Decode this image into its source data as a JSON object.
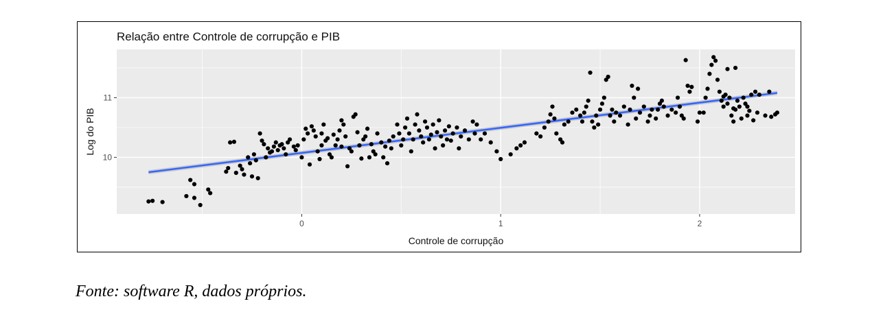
{
  "caption": "Fonte: software R, dados próprios.",
  "chart_data": {
    "type": "scatter",
    "title": "Relação entre Controle de corrupção e PIB",
    "xlabel": "Controle de corrupção",
    "ylabel": "Log do PIB",
    "xlim": [
      -0.93,
      2.48
    ],
    "ylim": [
      9.05,
      11.81
    ],
    "xticks": [
      0,
      1,
      2
    ],
    "xtick_labels": [
      "0",
      "1",
      "2"
    ],
    "yticks": [
      10,
      11
    ],
    "ytick_labels": [
      "10",
      "11"
    ],
    "grid": true,
    "legend": "none",
    "colors": {
      "panel": "#ebebeb",
      "grid": "#ffffff",
      "points": "#000000",
      "trend_line": "#3366ff",
      "confidence_band": "#bdbdbd"
    },
    "trend_line": {
      "method": "lm",
      "x": [
        -0.77,
        2.39
      ],
      "y": [
        9.75,
        11.08
      ],
      "band": 0.035
    },
    "points": [
      [
        -0.77,
        9.26
      ],
      [
        -0.75,
        9.27
      ],
      [
        -0.7,
        9.25
      ],
      [
        -0.58,
        9.35
      ],
      [
        -0.56,
        9.62
      ],
      [
        -0.54,
        9.55
      ],
      [
        -0.54,
        9.32
      ],
      [
        -0.51,
        9.2
      ],
      [
        -0.47,
        9.46
      ],
      [
        -0.46,
        9.4
      ],
      [
        -0.38,
        9.76
      ],
      [
        -0.37,
        9.82
      ],
      [
        -0.36,
        10.25
      ],
      [
        -0.34,
        10.26
      ],
      [
        -0.33,
        9.74
      ],
      [
        -0.31,
        9.86
      ],
      [
        -0.3,
        9.8
      ],
      [
        -0.29,
        9.71
      ],
      [
        -0.27,
        10.0
      ],
      [
        -0.26,
        9.9
      ],
      [
        -0.25,
        9.68
      ],
      [
        -0.24,
        10.05
      ],
      [
        -0.23,
        9.95
      ],
      [
        -0.22,
        9.65
      ],
      [
        -0.21,
        10.4
      ],
      [
        -0.2,
        10.28
      ],
      [
        -0.19,
        10.22
      ],
      [
        -0.18,
        10.0
      ],
      [
        -0.17,
        10.15
      ],
      [
        -0.16,
        10.08
      ],
      [
        -0.15,
        10.1
      ],
      [
        -0.14,
        10.18
      ],
      [
        -0.13,
        10.25
      ],
      [
        -0.12,
        10.12
      ],
      [
        -0.11,
        10.2
      ],
      [
        -0.1,
        10.22
      ],
      [
        -0.09,
        10.15
      ],
      [
        -0.08,
        10.05
      ],
      [
        -0.07,
        10.25
      ],
      [
        -0.06,
        10.3
      ],
      [
        -0.04,
        10.18
      ],
      [
        -0.03,
        10.12
      ],
      [
        -0.02,
        10.2
      ],
      [
        0.0,
        10.0
      ],
      [
        0.01,
        10.3
      ],
      [
        0.02,
        10.48
      ],
      [
        0.03,
        10.4
      ],
      [
        0.04,
        9.88
      ],
      [
        0.05,
        10.52
      ],
      [
        0.06,
        10.45
      ],
      [
        0.07,
        10.35
      ],
      [
        0.08,
        10.1
      ],
      [
        0.09,
        9.97
      ],
      [
        0.1,
        10.2
      ],
      [
        0.1,
        10.4
      ],
      [
        0.11,
        10.55
      ],
      [
        0.12,
        10.28
      ],
      [
        0.13,
        10.32
      ],
      [
        0.14,
        10.05
      ],
      [
        0.15,
        10.0
      ],
      [
        0.16,
        10.38
      ],
      [
        0.17,
        10.2
      ],
      [
        0.18,
        10.3
      ],
      [
        0.19,
        10.45
      ],
      [
        0.2,
        10.18
      ],
      [
        0.2,
        10.62
      ],
      [
        0.21,
        10.55
      ],
      [
        0.22,
        10.35
      ],
      [
        0.23,
        9.85
      ],
      [
        0.24,
        10.15
      ],
      [
        0.25,
        10.1
      ],
      [
        0.26,
        10.68
      ],
      [
        0.27,
        10.72
      ],
      [
        0.28,
        10.42
      ],
      [
        0.29,
        10.2
      ],
      [
        0.3,
        9.98
      ],
      [
        0.31,
        10.3
      ],
      [
        0.32,
        10.35
      ],
      [
        0.33,
        10.48
      ],
      [
        0.34,
        10.0
      ],
      [
        0.35,
        10.22
      ],
      [
        0.36,
        10.1
      ],
      [
        0.37,
        10.05
      ],
      [
        0.38,
        10.4
      ],
      [
        0.4,
        10.25
      ],
      [
        0.41,
        10.0
      ],
      [
        0.42,
        10.18
      ],
      [
        0.43,
        9.9
      ],
      [
        0.44,
        10.28
      ],
      [
        0.45,
        10.15
      ],
      [
        0.46,
        10.35
      ],
      [
        0.48,
        10.55
      ],
      [
        0.49,
        10.4
      ],
      [
        0.5,
        10.2
      ],
      [
        0.51,
        10.3
      ],
      [
        0.52,
        10.5
      ],
      [
        0.53,
        10.65
      ],
      [
        0.54,
        10.4
      ],
      [
        0.55,
        10.1
      ],
      [
        0.56,
        10.3
      ],
      [
        0.57,
        10.55
      ],
      [
        0.58,
        10.72
      ],
      [
        0.59,
        10.45
      ],
      [
        0.6,
        10.35
      ],
      [
        0.61,
        10.25
      ],
      [
        0.62,
        10.6
      ],
      [
        0.63,
        10.5
      ],
      [
        0.64,
        10.3
      ],
      [
        0.65,
        10.38
      ],
      [
        0.66,
        10.55
      ],
      [
        0.67,
        10.15
      ],
      [
        0.68,
        10.42
      ],
      [
        0.69,
        10.62
      ],
      [
        0.7,
        10.35
      ],
      [
        0.71,
        10.2
      ],
      [
        0.72,
        10.45
      ],
      [
        0.73,
        10.3
      ],
      [
        0.74,
        10.52
      ],
      [
        0.75,
        10.28
      ],
      [
        0.76,
        10.4
      ],
      [
        0.78,
        10.5
      ],
      [
        0.79,
        10.15
      ],
      [
        0.8,
        10.35
      ],
      [
        0.82,
        10.45
      ],
      [
        0.84,
        10.3
      ],
      [
        0.86,
        10.6
      ],
      [
        0.87,
        10.4
      ],
      [
        0.88,
        10.55
      ],
      [
        0.9,
        10.3
      ],
      [
        0.92,
        10.4
      ],
      [
        0.95,
        10.25
      ],
      [
        0.98,
        10.1
      ],
      [
        1.0,
        9.97
      ],
      [
        1.05,
        10.05
      ],
      [
        1.08,
        10.15
      ],
      [
        1.1,
        10.2
      ],
      [
        1.12,
        10.25
      ],
      [
        1.18,
        10.4
      ],
      [
        1.2,
        10.35
      ],
      [
        1.22,
        10.5
      ],
      [
        1.24,
        10.6
      ],
      [
        1.25,
        10.72
      ],
      [
        1.26,
        10.85
      ],
      [
        1.27,
        10.65
      ],
      [
        1.28,
        10.4
      ],
      [
        1.3,
        10.3
      ],
      [
        1.31,
        10.25
      ],
      [
        1.32,
        10.55
      ],
      [
        1.34,
        10.6
      ],
      [
        1.36,
        10.75
      ],
      [
        1.38,
        10.8
      ],
      [
        1.4,
        10.7
      ],
      [
        1.41,
        10.6
      ],
      [
        1.42,
        10.75
      ],
      [
        1.43,
        10.85
      ],
      [
        1.44,
        10.95
      ],
      [
        1.45,
        11.42
      ],
      [
        1.46,
        10.6
      ],
      [
        1.47,
        10.5
      ],
      [
        1.48,
        10.7
      ],
      [
        1.49,
        10.55
      ],
      [
        1.5,
        10.8
      ],
      [
        1.51,
        10.9
      ],
      [
        1.52,
        11.0
      ],
      [
        1.53,
        11.3
      ],
      [
        1.54,
        11.35
      ],
      [
        1.55,
        10.7
      ],
      [
        1.56,
        10.8
      ],
      [
        1.57,
        10.6
      ],
      [
        1.58,
        10.75
      ],
      [
        1.6,
        10.7
      ],
      [
        1.62,
        10.85
      ],
      [
        1.64,
        10.55
      ],
      [
        1.65,
        10.8
      ],
      [
        1.66,
        11.2
      ],
      [
        1.67,
        11.0
      ],
      [
        1.68,
        10.65
      ],
      [
        1.69,
        11.15
      ],
      [
        1.7,
        10.75
      ],
      [
        1.72,
        10.85
      ],
      [
        1.74,
        10.6
      ],
      [
        1.75,
        10.7
      ],
      [
        1.76,
        10.8
      ],
      [
        1.78,
        10.65
      ],
      [
        1.79,
        10.8
      ],
      [
        1.8,
        10.9
      ],
      [
        1.81,
        10.95
      ],
      [
        1.82,
        10.85
      ],
      [
        1.84,
        10.7
      ],
      [
        1.86,
        10.8
      ],
      [
        1.88,
        10.75
      ],
      [
        1.89,
        11.0
      ],
      [
        1.9,
        10.85
      ],
      [
        1.91,
        10.7
      ],
      [
        1.92,
        10.65
      ],
      [
        1.93,
        11.63
      ],
      [
        1.94,
        11.2
      ],
      [
        1.95,
        11.1
      ],
      [
        1.96,
        11.18
      ],
      [
        2.02,
        10.75
      ],
      [
        2.03,
        11.0
      ],
      [
        2.04,
        11.15
      ],
      [
        2.05,
        11.4
      ],
      [
        2.06,
        11.55
      ],
      [
        2.07,
        11.68
      ],
      [
        2.08,
        11.62
      ],
      [
        2.09,
        11.3
      ],
      [
        2.1,
        11.1
      ],
      [
        2.11,
        10.95
      ],
      [
        2.12,
        10.85
      ],
      [
        2.13,
        11.05
      ],
      [
        2.14,
        10.9
      ],
      [
        2.15,
        11.0
      ],
      [
        2.16,
        10.7
      ],
      [
        2.17,
        10.6
      ],
      [
        2.18,
        10.8
      ],
      [
        2.19,
        10.95
      ],
      [
        2.2,
        10.85
      ],
      [
        2.21,
        10.65
      ],
      [
        2.22,
        11.0
      ],
      [
        2.23,
        10.9
      ],
      [
        2.24,
        10.7
      ],
      [
        2.25,
        10.78
      ],
      [
        2.26,
        11.05
      ],
      [
        2.27,
        10.62
      ],
      [
        2.28,
        11.1
      ],
      [
        2.29,
        10.75
      ],
      [
        2.3,
        11.05
      ],
      [
        2.33,
        10.7
      ],
      [
        2.35,
        11.1
      ],
      [
        2.36,
        10.68
      ],
      [
        2.38,
        10.72
      ],
      [
        2.39,
        10.75
      ],
      [
        2.14,
        11.48
      ],
      [
        2.18,
        11.5
      ],
      [
        2.12,
        11.02
      ],
      [
        2.17,
        10.82
      ],
      [
        2.24,
        10.85
      ],
      [
        1.99,
        10.6
      ],
      [
        2.0,
        10.75
      ]
    ]
  }
}
